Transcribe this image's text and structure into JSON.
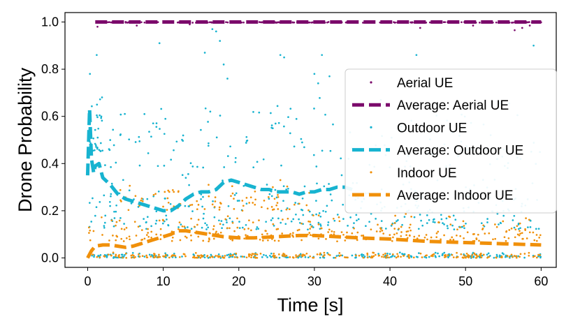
{
  "chart_data": {
    "type": "scatter",
    "title": "",
    "xlabel": "Time [s]",
    "ylabel": "Drone Probability",
    "xlim": [
      -3,
      62
    ],
    "ylim": [
      -0.04,
      1.04
    ],
    "xticks": [
      0,
      10,
      20,
      30,
      40,
      50,
      60
    ],
    "yticks": [
      0.0,
      0.2,
      0.4,
      0.6,
      0.8,
      1.0
    ],
    "xtick_labels": [
      "0",
      "10",
      "20",
      "30",
      "40",
      "50",
      "60"
    ],
    "ytick_labels": [
      "0.0",
      "0.2",
      "0.4",
      "0.6",
      "0.8",
      "1.0"
    ],
    "grid": false,
    "legend_position": "center-right",
    "series": [
      {
        "name": "Aerial UE",
        "kind": "scatter",
        "color": "#7b0a6b",
        "seed": 11,
        "clusters": [
          {
            "x": [
              1,
              60
            ],
            "count": 280,
            "y_base": 1.0,
            "y_spread": 0.003
          }
        ],
        "outliers": [
          [
            1.3,
            0.98
          ],
          [
            6.5,
            0.985
          ],
          [
            13.5,
            0.99
          ],
          [
            44,
            0.975
          ],
          [
            51,
            0.985
          ],
          [
            56.5,
            0.965
          ],
          [
            57.5,
            0.975
          ],
          [
            58.5,
            0.985
          ]
        ]
      },
      {
        "name": "Average: Aerial UE",
        "kind": "line",
        "dash": "dashed",
        "color": "#7b0a6b",
        "x": [
          1,
          60
        ],
        "y": [
          1.0,
          1.0
        ]
      },
      {
        "name": "Outdoor UE",
        "kind": "scatter",
        "color": "#17b3d0",
        "seed": 23,
        "clusters": [
          {
            "x": [
              0,
              60
            ],
            "count": 230,
            "y_base": 0.0,
            "y_spread": 0.012
          },
          {
            "x": [
              0,
              60
            ],
            "count": 320,
            "y_base": 0.12,
            "y_spread": 0.12
          },
          {
            "x": [
              0,
              60
            ],
            "count": 150,
            "y_base": 0.38,
            "y_spread": 0.16
          },
          {
            "x": [
              0.1,
              2
            ],
            "count": 30,
            "y_base": 0.45,
            "y_spread": 0.12
          }
        ],
        "outliers": [
          [
            0.3,
            0.78
          ],
          [
            1.2,
            0.86
          ],
          [
            9.5,
            0.91
          ],
          [
            15.5,
            0.87
          ],
          [
            16.5,
            0.97
          ],
          [
            17,
            0.96
          ],
          [
            17.5,
            0.92
          ],
          [
            18,
            0.82
          ],
          [
            18.5,
            0.76
          ],
          [
            25.5,
            0.86
          ],
          [
            26,
            0.85
          ],
          [
            30,
            0.78
          ],
          [
            30.5,
            0.74
          ],
          [
            31,
            0.86
          ],
          [
            32,
            0.77
          ],
          [
            43.5,
            0.86
          ],
          [
            59,
            0.9
          ]
        ]
      },
      {
        "name": "Average: Outdoor UE",
        "kind": "line",
        "dash": "dashed",
        "color": "#17b3d0",
        "x": [
          0,
          0.25,
          0.5,
          0.8,
          1,
          1.5,
          2,
          3,
          4,
          5,
          6,
          7,
          8,
          9,
          10,
          11,
          12,
          13,
          14,
          15,
          16,
          17,
          18,
          19,
          20,
          21,
          22,
          23,
          24,
          25,
          26,
          27,
          28,
          29,
          30,
          31,
          32,
          33,
          34,
          35
        ],
        "y": [
          0.35,
          0.63,
          0.42,
          0.36,
          0.39,
          0.4,
          0.34,
          0.31,
          0.27,
          0.25,
          0.24,
          0.23,
          0.22,
          0.21,
          0.2,
          0.2,
          0.22,
          0.25,
          0.27,
          0.28,
          0.28,
          0.29,
          0.32,
          0.33,
          0.32,
          0.31,
          0.3,
          0.29,
          0.29,
          0.28,
          0.28,
          0.28,
          0.27,
          0.28,
          0.28,
          0.29,
          0.29,
          0.3,
          0.3,
          0.29
        ]
      },
      {
        "name": "Indoor UE",
        "kind": "scatter",
        "color": "#f0900a",
        "seed": 37,
        "clusters": [
          {
            "x": [
              0,
              60
            ],
            "count": 260,
            "y_base": 0.0,
            "y_spread": 0.012
          },
          {
            "x": [
              0,
              60
            ],
            "count": 280,
            "y_base": 0.07,
            "y_spread": 0.06
          },
          {
            "x": [
              4,
              30
            ],
            "count": 80,
            "y_base": 0.2,
            "y_spread": 0.07
          }
        ],
        "outliers": [
          [
            10.2,
            0.28
          ],
          [
            10.8,
            0.28
          ],
          [
            11.4,
            0.28
          ],
          [
            12,
            0.28
          ],
          [
            16,
            0.31
          ],
          [
            24.5,
            0.3
          ],
          [
            25.5,
            0.33
          ],
          [
            28,
            0.23
          ]
        ]
      },
      {
        "name": "Average: Indoor UE",
        "kind": "line",
        "dash": "dashed",
        "color": "#f0900a",
        "x": [
          0,
          0.5,
          1,
          2,
          3,
          4,
          5,
          6,
          7,
          8,
          9,
          10,
          11,
          12,
          13,
          14,
          15,
          16,
          18,
          20,
          22,
          25,
          28,
          30,
          33,
          36,
          40,
          45,
          50,
          55,
          60
        ],
        "y": [
          0.0,
          0.03,
          0.05,
          0.055,
          0.055,
          0.05,
          0.045,
          0.05,
          0.06,
          0.07,
          0.08,
          0.09,
          0.1,
          0.115,
          0.115,
          0.11,
          0.105,
          0.1,
          0.09,
          0.085,
          0.085,
          0.09,
          0.095,
          0.095,
          0.09,
          0.085,
          0.08,
          0.07,
          0.065,
          0.06,
          0.055
        ]
      }
    ]
  }
}
